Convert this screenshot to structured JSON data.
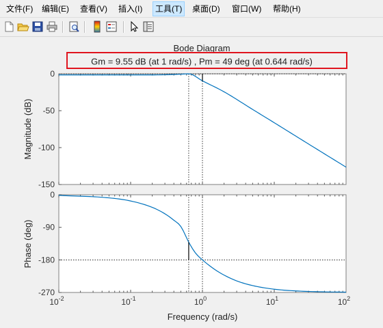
{
  "menu": [
    "文件(F)",
    "编辑(E)",
    "查看(V)",
    "插入(I)",
    "工具(T)",
    "桌面(D)",
    "窗口(W)",
    "帮助(H)"
  ],
  "menu_active_index": 4,
  "toolbar_icons": [
    "new-file-icon",
    "open-folder-icon",
    "save-icon",
    "print-icon",
    "print-preview-icon",
    "colorbar-icon",
    "legend-icon",
    "select-arrow-icon",
    "property-editor-icon"
  ],
  "figure": {
    "title": "Bode Diagram",
    "margins_label": "Gm = 9.55 dB (at 1 rad/s) ,  Pm = 49 deg (at 0.644 rad/s)",
    "highlight_color": "#e0141e",
    "line_color": "#0072bd"
  },
  "chart_data": [
    {
      "type": "line",
      "name": "magnitude",
      "xscale": "log",
      "xlim": [
        0.01,
        100
      ],
      "ylim": [
        -150,
        0
      ],
      "ylabel": "Magnitude (dB)",
      "yticks": [
        0,
        -50,
        -100,
        -150
      ],
      "x": [
        0.01,
        0.1,
        0.3,
        0.5,
        0.644,
        1,
        2,
        5,
        10,
        30,
        100
      ],
      "y": [
        -1.5,
        -1.5,
        -1.3,
        -0.5,
        0,
        -9.55,
        -24.4,
        -48.3,
        -66.3,
        -95.1,
        -126.5
      ],
      "gain_crossover": 0.644,
      "phase_crossover": 1,
      "gain_margin_db": 9.55
    },
    {
      "type": "line",
      "name": "phase",
      "xscale": "log",
      "xlim": [
        0.01,
        100
      ],
      "ylim": [
        -270,
        0
      ],
      "ylabel": "Phase (deg)",
      "xlabel": "Frequency  (rad/s)",
      "yticks": [
        0,
        -90,
        -180,
        -270
      ],
      "xticks": [
        "10^-2",
        "10^-1",
        "10^0",
        "10^1",
        "10^2"
      ],
      "x": [
        0.01,
        0.05,
        0.1,
        0.2,
        0.3,
        0.4,
        0.5,
        0.644,
        0.8,
        1,
        1.5,
        2,
        3,
        5,
        10,
        20,
        50,
        100
      ],
      "y": [
        -1.7,
        -8.6,
        -17.2,
        -34.8,
        -52.6,
        -70.4,
        -87.6,
        -131,
        -161,
        -180,
        -207,
        -222,
        -238,
        -251,
        -261,
        -265.7,
        -268.3,
        -269.1
      ],
      "reference_line": -180,
      "phase_margin_deg": 49
    }
  ]
}
